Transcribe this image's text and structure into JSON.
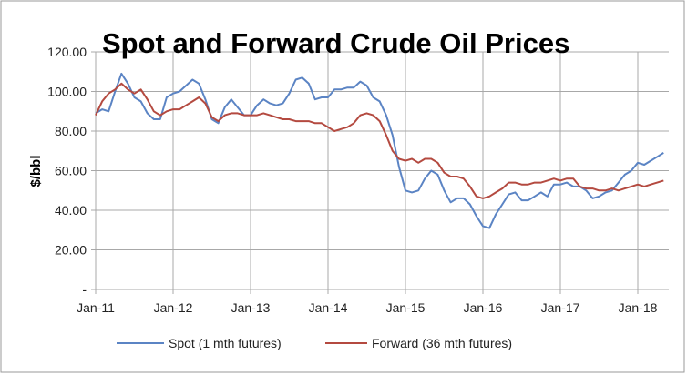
{
  "chart_data": {
    "type": "line",
    "title": "Spot and Forward Crude Oil Prices",
    "xlabel": "",
    "ylabel": "$/bbl",
    "ylim": [
      0,
      120
    ],
    "y_ticks": [
      "-",
      "20.00",
      "40.00",
      "60.00",
      "80.00",
      "100.00",
      "120.00"
    ],
    "x_ticks": [
      "Jan-11",
      "Jan-12",
      "Jan-13",
      "Jan-14",
      "Jan-15",
      "Jan-16",
      "Jan-17",
      "Jan-18"
    ],
    "x_start": "Jan-11",
    "x_frequency": "monthly",
    "grid": true,
    "legend": "bottom",
    "series": [
      {
        "name": "Spot (1 mth futures)",
        "color": "#5b84c4",
        "values": [
          89,
          91,
          90,
          100,
          109,
          104,
          97,
          95,
          89,
          86,
          86,
          97,
          99,
          100,
          103,
          106,
          104,
          96,
          86,
          84,
          92,
          96,
          92,
          88,
          88,
          93,
          96,
          94,
          93,
          94,
          99,
          106,
          107,
          104,
          96,
          97,
          97,
          101,
          101,
          102,
          102,
          105,
          103,
          97,
          95,
          88,
          78,
          62,
          50,
          49,
          50,
          56,
          60,
          58,
          50,
          44,
          46,
          46,
          43,
          37,
          32,
          31,
          38,
          43,
          48,
          49,
          45,
          45,
          47,
          49,
          47,
          53,
          53,
          54,
          52,
          52,
          50,
          46,
          47,
          49,
          50,
          54,
          58,
          60,
          64,
          63,
          65,
          67,
          69
        ]
      },
      {
        "name": "Forward (36 mth futures)",
        "color": "#b44a40",
        "values": [
          88,
          95,
          99,
          101,
          104,
          101,
          99,
          101,
          96,
          90,
          88,
          90,
          91,
          91,
          93,
          95,
          97,
          94,
          87,
          85,
          88,
          89,
          89,
          88,
          88,
          88,
          89,
          88,
          87,
          86,
          86,
          85,
          85,
          85,
          84,
          84,
          82,
          80,
          81,
          82,
          84,
          88,
          89,
          88,
          85,
          78,
          70,
          66,
          65,
          66,
          64,
          66,
          66,
          64,
          59,
          57,
          57,
          56,
          52,
          47,
          46,
          47,
          49,
          51,
          54,
          54,
          53,
          53,
          54,
          54,
          55,
          56,
          55,
          56,
          56,
          52,
          51,
          51,
          50,
          50,
          51,
          50,
          51,
          52,
          53,
          52,
          53,
          54,
          55
        ]
      }
    ]
  }
}
